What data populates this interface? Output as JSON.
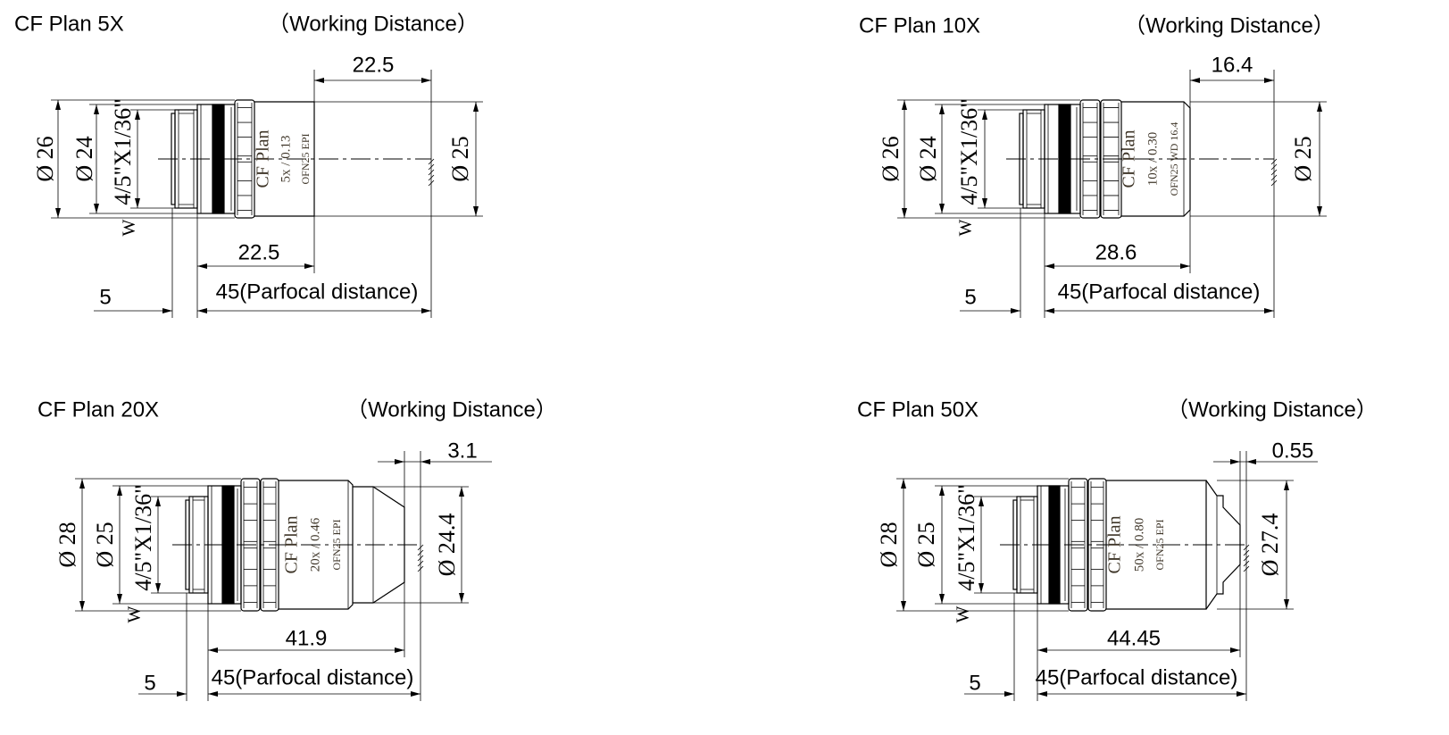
{
  "colors": {
    "line": "#000000",
    "engraving": "#3e3528",
    "band": "#000000",
    "background": "#ffffff"
  },
  "panels": [
    {
      "title": "CF Plan 5X",
      "working_distance_label": "（Working Distance）",
      "working_distance": "22.5",
      "body_length": "22.5",
      "thread_length": "5",
      "parfocal": "45(Parfocal distance)",
      "diameters": {
        "outer": "Ø 26",
        "collar": "Ø 24",
        "front": "Ø 25"
      },
      "thread": "4/5\"X1/36\"",
      "thread_suffix": "W",
      "engraving": [
        "CF Plan",
        "5x / 0.13",
        "OFN25 EPI"
      ]
    },
    {
      "title": "CF Plan 10X",
      "working_distance_label": "（Working Distance）",
      "working_distance": "16.4",
      "body_length": "28.6",
      "thread_length": "5",
      "parfocal": "45(Parfocal distance)",
      "diameters": {
        "outer": "Ø 26",
        "collar": "Ø 24",
        "front": "Ø 25"
      },
      "thread": "4/5\"X1/36\"",
      "thread_suffix": "W",
      "engraving": [
        "CF Plan",
        "10x / 0.30",
        "OFN25 WD 16.4"
      ]
    },
    {
      "title": "CF Plan 20X",
      "working_distance_label": "（Working Distance）",
      "working_distance": "3.1",
      "body_length": "41.9",
      "thread_length": "5",
      "parfocal": "45(Parfocal distance)",
      "diameters": {
        "outer": "Ø 28",
        "collar": "Ø 25",
        "front": "Ø 24.4"
      },
      "thread": "4/5\"X1/36\"",
      "thread_suffix": "W",
      "engraving": [
        "CF Plan",
        "20x / 0.46",
        "OFN25 EPI"
      ]
    },
    {
      "title": "CF Plan 50X",
      "working_distance_label": "（Working Distance）",
      "working_distance": "0.55",
      "body_length": "44.45",
      "thread_length": "5",
      "parfocal": "45(Parfocal distance)",
      "diameters": {
        "outer": "Ø 28",
        "collar": "Ø 25",
        "front": "Ø 27.4"
      },
      "thread": "4/5\"X1/36\"",
      "thread_suffix": "W",
      "engraving": [
        "CF Plan",
        "50x / 0.80",
        "OFN25 EPI"
      ]
    }
  ]
}
